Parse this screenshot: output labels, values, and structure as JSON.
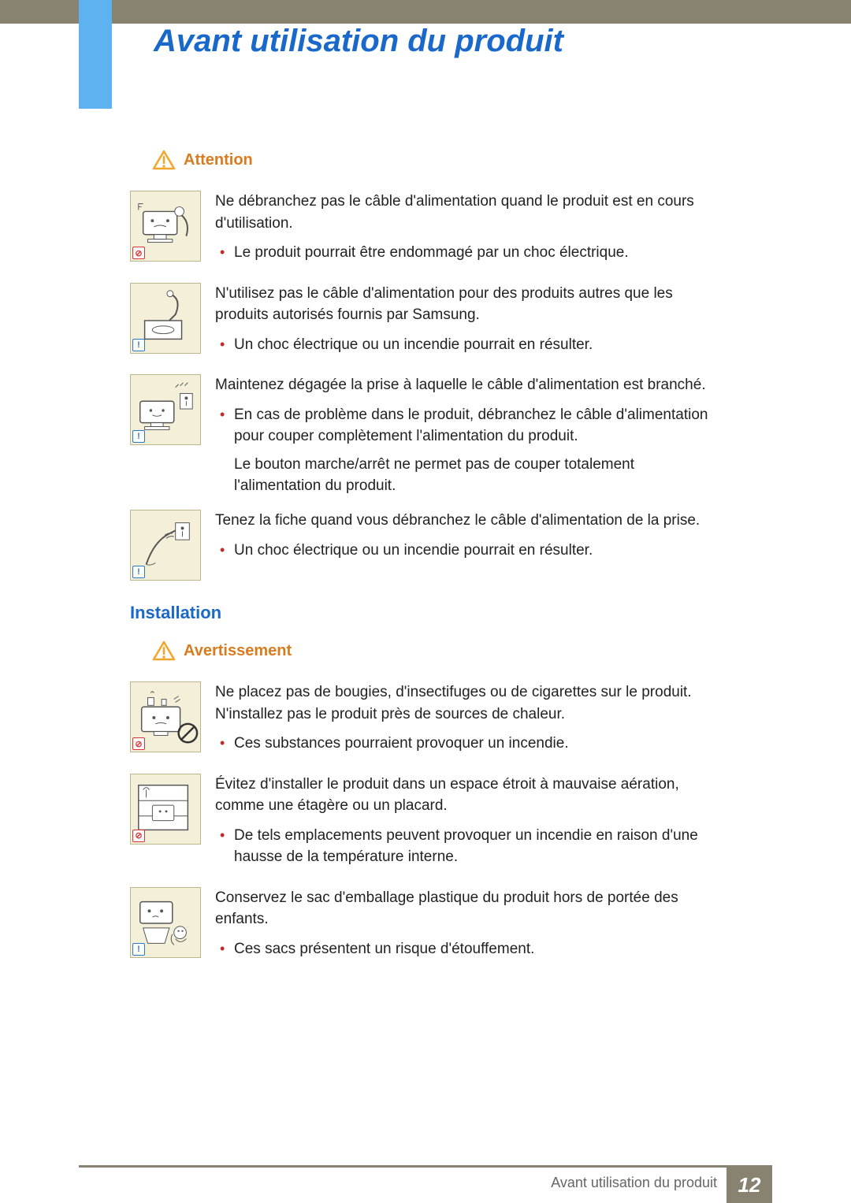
{
  "chapterTitle": "Avant utilisation du produit",
  "attention": {
    "label": "Attention",
    "warnColor": "#d97b1f",
    "triStroke": "#f2a52a",
    "items": [
      {
        "badge": "red",
        "lead": "Ne débranchez pas le câble d'alimentation quand le produit est en cours d'utilisation.",
        "bullets": [
          "Le produit pourrait être endommagé par un choc électrique."
        ]
      },
      {
        "badge": "blue",
        "lead": "N'utilisez pas le câble d'alimentation pour des produits autres que les produits autorisés fournis par Samsung.",
        "bullets": [
          "Un choc électrique ou un incendie pourrait en résulter."
        ]
      },
      {
        "badge": "blue",
        "lead": "Maintenez dégagée la prise à laquelle le câble d'alimentation est branché.",
        "bullets": [
          "En cas de problème dans le produit, débranchez le câble d'alimentation pour couper complètement l'alimentation du produit."
        ],
        "note": "Le bouton marche/arrêt ne permet pas de couper totalement l'alimentation du produit."
      },
      {
        "badge": "blue",
        "lead": "Tenez la fiche quand vous débranchez le câble d'alimentation de la prise.",
        "bullets": [
          "Un choc électrique ou un incendie pourrait en résulter."
        ]
      }
    ]
  },
  "installation": {
    "title": "Installation",
    "warningLabel": "Avertissement",
    "items": [
      {
        "badge": "red",
        "lead": "Ne placez pas de bougies, d'insectifuges ou de cigarettes sur le produit. N'installez pas le produit près de sources de chaleur.",
        "bullets": [
          "Ces substances pourraient provoquer un incendie."
        ]
      },
      {
        "badge": "red",
        "lead": "Évitez d'installer le produit dans un espace étroit à mauvaise aération, comme une étagère ou un placard.",
        "bullets": [
          "De tels emplacements peuvent provoquer un incendie en raison d'une hausse de la température interne."
        ]
      },
      {
        "badge": "blue",
        "lead": "Conservez le sac d'emballage plastique du produit hors de portée des enfants.",
        "bullets": [
          "Ces sacs présentent un risque d'étouffement."
        ]
      }
    ]
  },
  "footer": {
    "title": "Avant utilisation du produit",
    "page": "12"
  },
  "colors": {
    "headerBar": "#888270",
    "leftBar": "#5eb2f0",
    "chapter": "#1a68c9",
    "bullet": "#c02a2a",
    "thumbBg": "#f3efd8",
    "thumbBorder": "#bcb68d"
  }
}
